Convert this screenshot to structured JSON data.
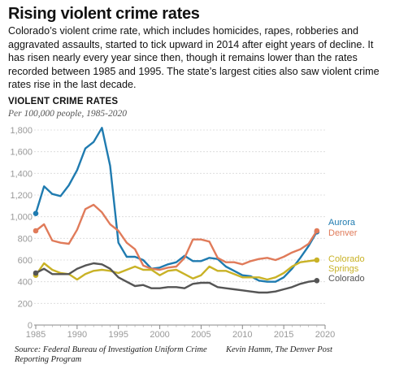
{
  "article": {
    "title": "Rising violent crime rates",
    "description": "Colorado’s violent crime rate, which includes homicides, rapes, robberies and aggravated assaults, started to tick upward in 2014 after eight years of decline. It has risen nearly every year since then, though it remains lower than the rates recorded between 1985 and 1995. The state’s largest cities also saw violent crime rates rise in the last decade."
  },
  "footer": {
    "source": "Source: Federal Bureau of Investigation Uniform Crime Reporting Program",
    "credit": "Kevin Hamm, The Denver Post"
  },
  "chart_data": {
    "type": "line",
    "title": "VIOLENT CRIME RATES",
    "subtitle": "Per 100,000 people, 1985-2020",
    "xlim": [
      1985,
      2020
    ],
    "ylim": [
      0,
      1800
    ],
    "x_ticks": [
      1985,
      1990,
      1995,
      2000,
      2005,
      2010,
      2015,
      2020
    ],
    "y_ticks": [
      0,
      200,
      400,
      600,
      800,
      1000,
      1200,
      1400,
      1600,
      1800
    ],
    "y_tick_labels": [
      "0",
      "200",
      "400",
      "600",
      "800",
      "1,000",
      "1,200",
      "1,400",
      "1,600",
      "1,800"
    ],
    "grid": "horizontal",
    "legend": "direct labels at right end of lines",
    "x": [
      1985,
      1986,
      1987,
      1988,
      1989,
      1990,
      1991,
      1992,
      1993,
      1994,
      1995,
      1996,
      1997,
      1998,
      1999,
      2000,
      2001,
      2002,
      2003,
      2004,
      2005,
      2006,
      2007,
      2008,
      2009,
      2010,
      2011,
      2012,
      2013,
      2014,
      2015,
      2016,
      2017,
      2018,
      2019
    ],
    "series": [
      {
        "name": "Aurora",
        "color": "#1f7bb0",
        "label_lines": [
          "Aurora"
        ],
        "values": [
          1030,
          1280,
          1210,
          1190,
          1290,
          1430,
          1630,
          1690,
          1820,
          1470,
          760,
          630,
          630,
          600,
          520,
          530,
          560,
          580,
          640,
          590,
          590,
          620,
          610,
          540,
          500,
          460,
          450,
          410,
          400,
          400,
          440,
          520,
          620,
          730,
          860
        ]
      },
      {
        "name": "Denver",
        "color": "#e07b5a",
        "label_lines": [
          "Denver"
        ],
        "values": [
          870,
          930,
          780,
          760,
          750,
          880,
          1070,
          1110,
          1040,
          930,
          870,
          760,
          700,
          550,
          520,
          510,
          530,
          540,
          620,
          790,
          790,
          770,
          620,
          580,
          580,
          560,
          590,
          610,
          620,
          600,
          630,
          670,
          700,
          750,
          870
        ]
      },
      {
        "name": "Colorado Springs",
        "color": "#c9b226",
        "label_lines": [
          "Colorado",
          "Springs"
        ],
        "values": [
          460,
          570,
          510,
          480,
          470,
          420,
          470,
          500,
          510,
          500,
          480,
          510,
          540,
          510,
          510,
          460,
          500,
          510,
          470,
          430,
          460,
          540,
          500,
          500,
          470,
          440,
          440,
          440,
          420,
          440,
          480,
          540,
          580,
          590,
          600
        ]
      },
      {
        "name": "Colorado",
        "color": "#555555",
        "label_lines": [
          "Colorado"
        ],
        "values": [
          480,
          520,
          470,
          470,
          470,
          520,
          550,
          570,
          560,
          520,
          440,
          400,
          360,
          370,
          340,
          340,
          350,
          350,
          340,
          380,
          390,
          390,
          350,
          340,
          330,
          320,
          310,
          300,
          300,
          310,
          330,
          350,
          380,
          400,
          410
        ]
      }
    ]
  }
}
